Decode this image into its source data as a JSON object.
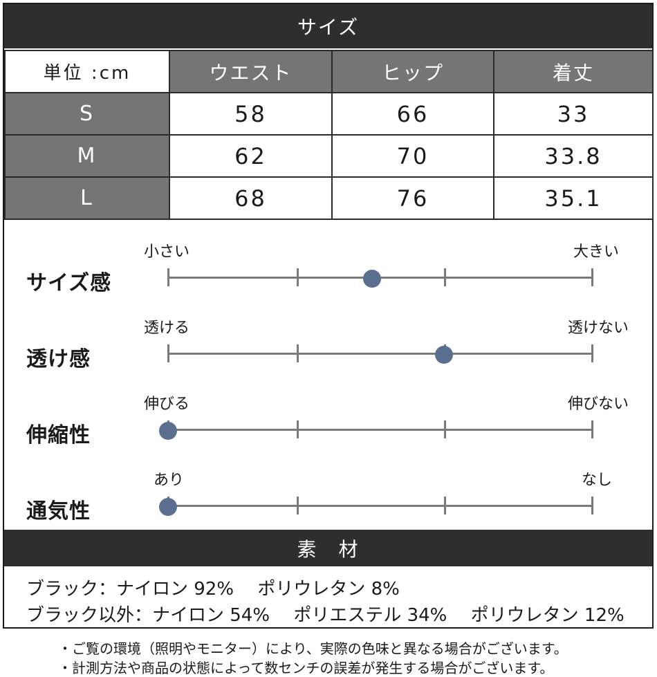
{
  "header": {
    "title": "サイズ"
  },
  "size_table": {
    "unit_label": "単位 :cm",
    "columns": [
      "ウエスト",
      "ヒップ",
      "着丈"
    ],
    "rows": [
      {
        "size": "S",
        "values": [
          "58",
          "66",
          "33"
        ]
      },
      {
        "size": "M",
        "values": [
          "62",
          "70",
          "33.8"
        ]
      },
      {
        "size": "L",
        "values": [
          "68",
          "76",
          "35.1"
        ]
      }
    ]
  },
  "scales": [
    {
      "title": "サイズ感",
      "left_label": "小さい",
      "right_label": "大きい",
      "level": 0.48
    },
    {
      "title": "透け感",
      "left_label": "透ける",
      "right_label": "透けない",
      "level": 0.65
    },
    {
      "title": "伸縮性",
      "left_label": "伸びる",
      "right_label": "伸びない",
      "level": 0.0
    },
    {
      "title": "通気性",
      "left_label": "あり",
      "right_label": "なし",
      "level": 0.0
    }
  ],
  "material": {
    "title": "素　材",
    "lines": [
      "ブラック：ナイロン 92%　 ポリウレタン 8%",
      "ブラック以外：ナイロン 54%　 ポリエステル 34%　 ポリウレタン 12%"
    ]
  },
  "notes": [
    "・ご覧の環境（照明やモニター）により、実際の色味と異なる場合がございます。",
    "・計測方法や商品の状態によって数センチの誤差が発生する場合がございます。"
  ],
  "colors": {
    "header_bg": "#2e2e2e",
    "cell_gray": "#757575",
    "dot": "#5a6f8f",
    "track": "#7a7a7a"
  }
}
